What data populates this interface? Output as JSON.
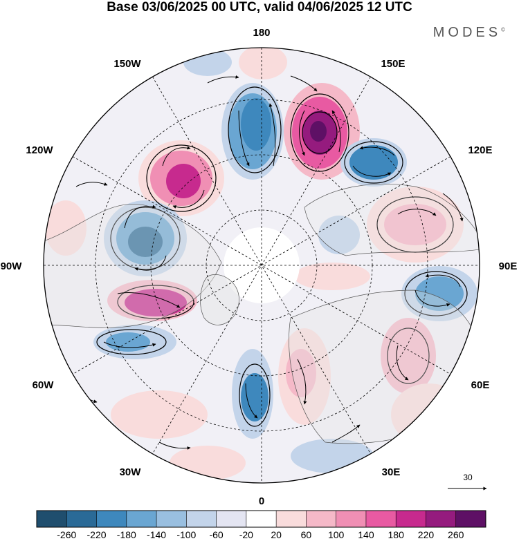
{
  "title": "Base 03/06/2025 00 UTC, valid 04/06/2025 12 UTC",
  "brand": "MODES",
  "brand_mark": "©",
  "longitude_labels": {
    "top": "180",
    "top_left": "150W",
    "top_right": "150E",
    "upper_left": "120W",
    "upper_right": "120E",
    "left": "90W",
    "right": "90E",
    "lower_left": "60W",
    "lower_right": "60E",
    "bottom_left": "30W",
    "bottom_right": "30E",
    "bottom": "0"
  },
  "reference_vector": {
    "value": "30"
  },
  "colorbar": {
    "ticks": [
      "-260",
      "-220",
      "-180",
      "-140",
      "-100",
      "-60",
      "-20",
      "20",
      "60",
      "100",
      "140",
      "180",
      "220",
      "260"
    ],
    "colors": [
      "#1f4e6e",
      "#2a6a97",
      "#3e88bd",
      "#6aa6d2",
      "#99bfe0",
      "#c3d4ea",
      "#e4e5f2",
      "#ffffff",
      "#f9dcdc",
      "#f5b9c8",
      "#f08fb4",
      "#e85aa2",
      "#c72a8e",
      "#951b7e",
      "#5e1065"
    ]
  },
  "map_features": {
    "anomaly_centers": [
      {
        "lon": 150,
        "lat": 45,
        "value": -220
      },
      {
        "lon": 135,
        "lat": 45,
        "value": -220
      },
      {
        "lon": 120,
        "lat": 48,
        "value": 200
      },
      {
        "lon": 105,
        "lat": 42,
        "value": -200
      },
      {
        "lon": 160,
        "lat": 50,
        "value": 240
      },
      {
        "lon": 130,
        "lat": 55,
        "value": -180
      },
      {
        "lon": 70,
        "lat": 45,
        "value": 120
      },
      {
        "lon": 95,
        "lat": 40,
        "value": -160
      },
      {
        "lon": 60,
        "lat": 38,
        "value": 80
      },
      {
        "lon": 15,
        "lat": 45,
        "value": -180
      },
      {
        "lon": 30,
        "lat": 55,
        "value": 100
      },
      {
        "lon": -75,
        "lat": 40,
        "value": -160
      },
      {
        "lon": -85,
        "lat": 48,
        "value": 200
      }
    ]
  }
}
